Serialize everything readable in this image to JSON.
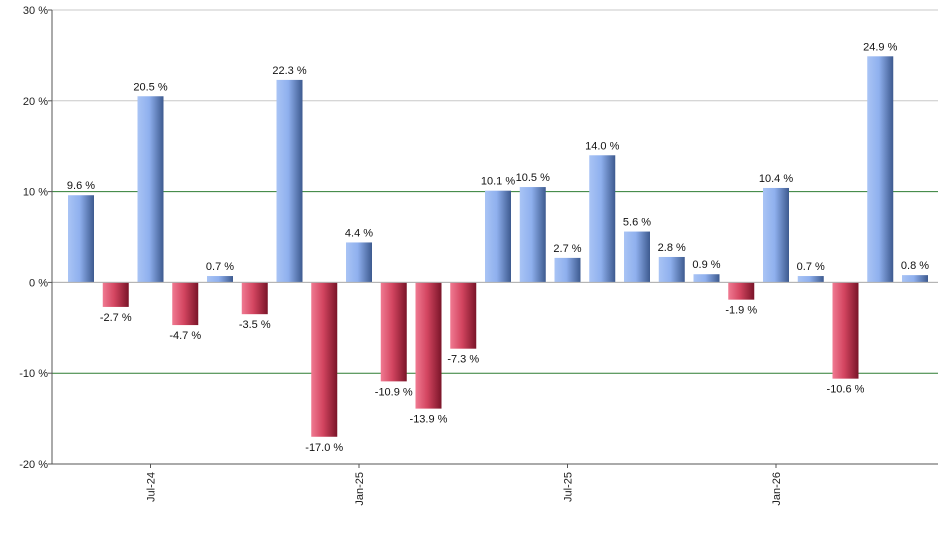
{
  "chart_data": {
    "type": "bar",
    "y_unit_suffix": " %",
    "ylim": [
      -20,
      30
    ],
    "yticks": [
      -20,
      -10,
      0,
      10,
      20,
      30
    ],
    "reference_lines": [
      10,
      -10
    ],
    "grid": "horizontal",
    "x_tick_labels": [
      {
        "label": "Jul-24",
        "at_index": 2
      },
      {
        "label": "Jan-25",
        "at_index": 8
      },
      {
        "label": "Jul-25",
        "at_index": 14
      },
      {
        "label": "Jan-26",
        "at_index": 20
      }
    ],
    "values": [
      9.6,
      -2.7,
      20.5,
      -4.7,
      0.7,
      -3.5,
      22.3,
      -17.0,
      4.4,
      -10.9,
      -13.9,
      -7.3,
      10.1,
      10.5,
      2.7,
      14.0,
      5.6,
      2.8,
      0.9,
      -1.9,
      10.4,
      0.7,
      -10.6,
      24.9,
      0.8
    ],
    "data_labels": [
      "9.6 %",
      "-2.7 %",
      "20.5 %",
      "-4.7 %",
      "0.7 %",
      "-3.5 %",
      "22.3 %",
      "-17.0 %",
      "4.4 %",
      "-10.9 %",
      "-13.9 %",
      "-7.3 %",
      "10.1 %",
      "10.5 %",
      "2.7 %",
      "14.0 %",
      "5.6 %",
      "2.8 %",
      "0.9 %",
      "-1.9 %",
      "10.4 %",
      "0.7 %",
      "-10.6 %",
      "24.9 %",
      "0.8 %"
    ],
    "colors": {
      "positive_light": "#a9c4f5",
      "positive_dark": "#3d5a8f",
      "negative_light": "#e8607a",
      "negative_dark": "#8a1a30",
      "grid": "#c8c8c8",
      "reference_line": "#2e7d32",
      "axis": "#555555"
    }
  }
}
